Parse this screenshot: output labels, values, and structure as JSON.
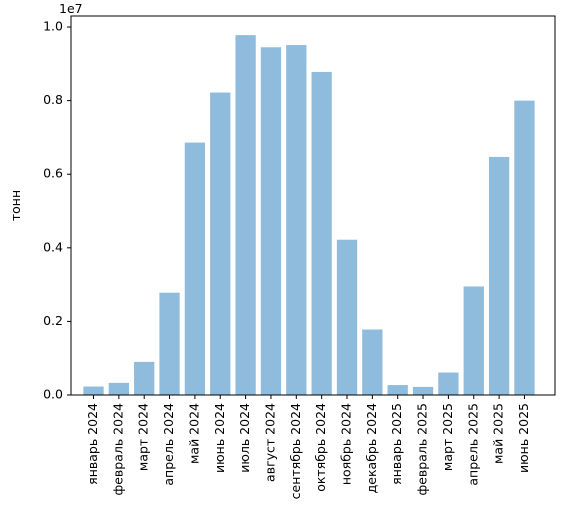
{
  "chart_data": {
    "type": "bar",
    "title": "",
    "xlabel": "",
    "ylabel": "тонн",
    "offset_text": "1e7",
    "ylim": [
      0,
      10300000
    ],
    "yticks": [
      0,
      2000000,
      4000000,
      6000000,
      8000000,
      10000000
    ],
    "ytick_labels": [
      "0.0",
      "0.2",
      "0.4",
      "0.6",
      "0.8",
      "1.0"
    ],
    "bar_color": "#8fbcdc",
    "grid": false,
    "categories": [
      "январь 2024",
      "февраль 2024",
      "март 2024",
      "апрель 2024",
      "май 2024",
      "июнь 2024",
      "июль 2024",
      "август 2024",
      "сентябрь 2024",
      "октябрь 2024",
      "ноябрь 2024",
      "декабрь 2024",
      "январь 2025",
      "февраль 2025",
      "март 2025",
      "апрель 2025",
      "май 2025",
      "июнь 2025"
    ],
    "values": [
      230000,
      330000,
      900000,
      2780000,
      6860000,
      8220000,
      9780000,
      9450000,
      9510000,
      8780000,
      4220000,
      1780000,
      270000,
      220000,
      610000,
      2950000,
      6470000,
      8000000
    ]
  }
}
